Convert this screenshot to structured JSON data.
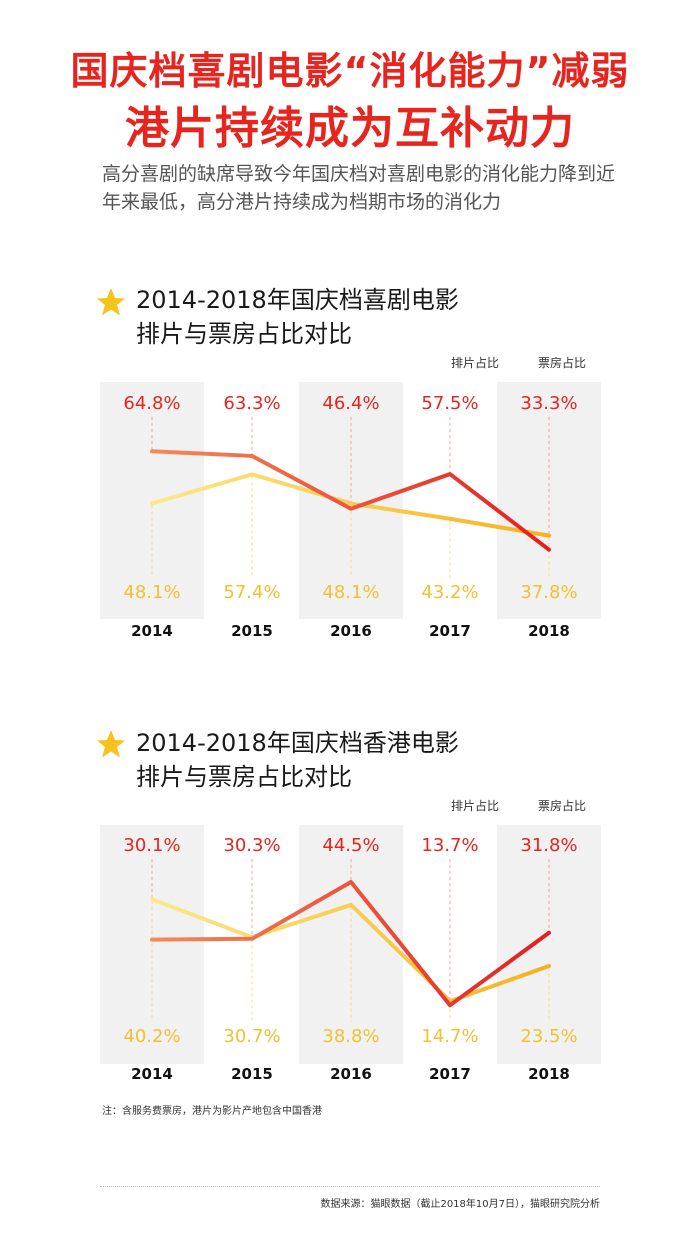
{
  "header": {
    "line1": "国庆档喜剧电影“消化能力”减弱",
    "line2": "港片持续成为互补动力",
    "subtitle": "高分喜剧的缺席导致今年国庆档对喜剧电影的消化能力降到近年来最低，高分港片持续成为档期市场的消化力"
  },
  "colors": {
    "accent_red": "#e8241e",
    "screening_line": "#f7c42b",
    "box_office_line": "#e8322a",
    "column_bg": "#f1f1f1"
  },
  "chart_data": [
    {
      "type": "line",
      "title_line1": "2014-2018年国庆档喜剧电影",
      "title_line2": "排片与票房占比对比",
      "categories": [
        "2014",
        "2015",
        "2016",
        "2017",
        "2018"
      ],
      "series": [
        {
          "name": "排片占比",
          "values": [
            48.1,
            57.4,
            48.1,
            43.2,
            37.8
          ],
          "labels": [
            "48.1%",
            "57.4%",
            "48.1%",
            "43.2%",
            "37.8%"
          ]
        },
        {
          "name": "票房占比",
          "values": [
            64.8,
            63.3,
            46.4,
            57.5,
            33.3
          ],
          "labels": [
            "64.8%",
            "63.3%",
            "46.4%",
            "57.5%",
            "33.3%"
          ]
        }
      ],
      "legend_position": "top-right"
    },
    {
      "type": "line",
      "title_line1": "2014-2018年国庆档香港电影",
      "title_line2": "排片与票房占比对比",
      "categories": [
        "2014",
        "2015",
        "2016",
        "2017",
        "2018"
      ],
      "series": [
        {
          "name": "排片占比",
          "values": [
            40.2,
            30.7,
            38.8,
            14.7,
            23.5
          ],
          "labels": [
            "40.2%",
            "30.7%",
            "38.8%",
            "14.7%",
            "23.5%"
          ]
        },
        {
          "name": "票房占比",
          "values": [
            30.1,
            30.3,
            44.5,
            13.7,
            31.8
          ],
          "labels": [
            "30.1%",
            "30.3%",
            "44.5%",
            "13.7%",
            "31.8%"
          ]
        }
      ],
      "legend_position": "top-right"
    }
  ],
  "footer": {
    "note": "注：含服务费票房，港片为影片产地包含中国香港",
    "source": "数据来源：猫眼数据（截止2018年10月7日），猫眼研究院分析"
  }
}
